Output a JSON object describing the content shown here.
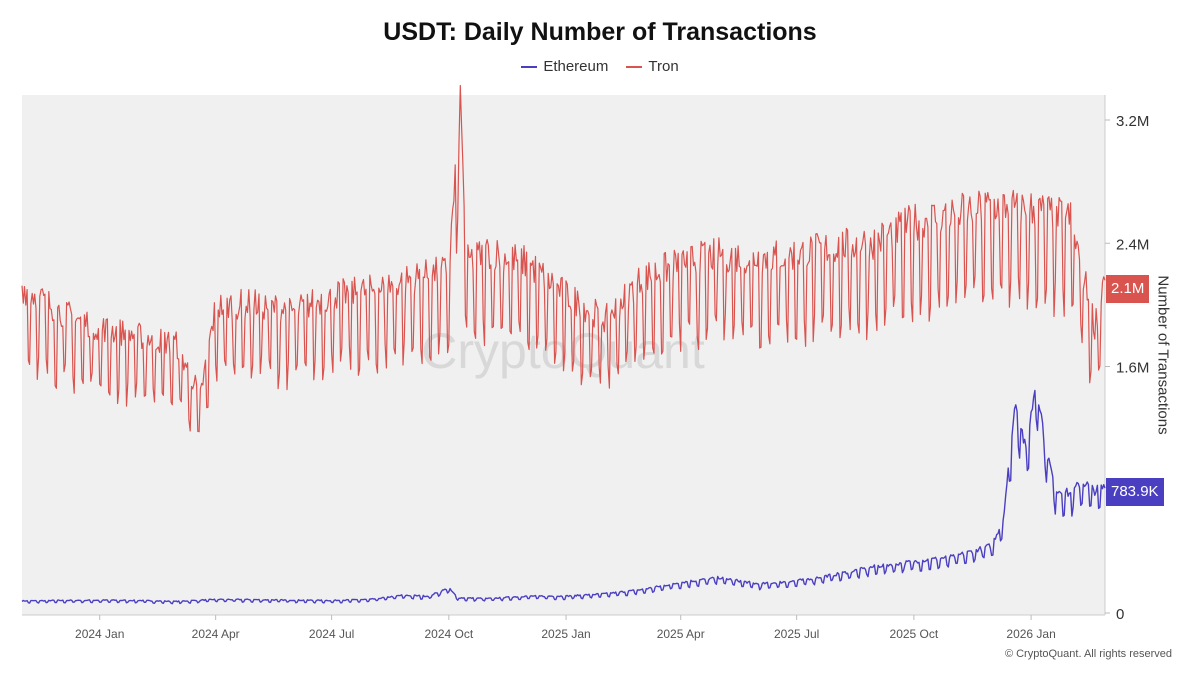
{
  "chart_data": {
    "type": "line",
    "title": "USDT: Daily Number of Transactions",
    "xlabel": "",
    "ylabel": "Number of Transactions",
    "x_range": [
      "2023-11-01",
      "2026-02-28"
    ],
    "x_ticks": [
      {
        "label": "2024 Jan",
        "date": "2024-01-01"
      },
      {
        "label": "2024 Apr",
        "date": "2024-04-01"
      },
      {
        "label": "2024 Jul",
        "date": "2024-07-01"
      },
      {
        "label": "2024 Oct",
        "date": "2024-10-01"
      },
      {
        "label": "2025 Jan",
        "date": "2025-01-01"
      },
      {
        "label": "2025 Apr",
        "date": "2025-04-01"
      },
      {
        "label": "2025 Jul",
        "date": "2025-07-01"
      },
      {
        "label": "2025 Oct",
        "date": "2025-10-01"
      },
      {
        "label": "2026 Jan",
        "date": "2026-01-01"
      }
    ],
    "ylim": [
      0,
      3200000
    ],
    "y_ticks": [
      {
        "label": "0",
        "value": 0
      },
      {
        "label": "1.6M",
        "value": 1600000
      },
      {
        "label": "2.4M",
        "value": 2400000
      },
      {
        "label": "3.2M",
        "value": 3200000
      }
    ],
    "series": [
      {
        "name": "Ethereum",
        "color": "#4b3fc1",
        "last_value_label": "783.9K",
        "points": [
          [
            "2023-11-01",
            75000
          ],
          [
            "2023-12-01",
            78000
          ],
          [
            "2024-01-01",
            80000
          ],
          [
            "2024-02-01",
            78000
          ],
          [
            "2024-03-01",
            72000
          ],
          [
            "2024-04-01",
            85000
          ],
          [
            "2024-05-01",
            83000
          ],
          [
            "2024-06-01",
            80000
          ],
          [
            "2024-07-01",
            78000
          ],
          [
            "2024-08-01",
            85000
          ],
          [
            "2024-08-25",
            110000
          ],
          [
            "2024-09-15",
            105000
          ],
          [
            "2024-10-01",
            155000
          ],
          [
            "2024-10-08",
            95000
          ],
          [
            "2024-11-01",
            90000
          ],
          [
            "2024-12-01",
            105000
          ],
          [
            "2025-01-01",
            105000
          ],
          [
            "2025-02-01",
            120000
          ],
          [
            "2025-03-01",
            145000
          ],
          [
            "2025-04-01",
            190000
          ],
          [
            "2025-05-01",
            220000
          ],
          [
            "2025-06-01",
            180000
          ],
          [
            "2025-07-01",
            200000
          ],
          [
            "2025-08-01",
            240000
          ],
          [
            "2025-09-01",
            290000
          ],
          [
            "2025-10-01",
            320000
          ],
          [
            "2025-11-01",
            350000
          ],
          [
            "2025-12-01",
            420000
          ],
          [
            "2025-12-10",
            580000
          ],
          [
            "2025-12-20",
            1330000
          ],
          [
            "2025-12-28",
            1000000
          ],
          [
            "2026-01-05",
            1460000
          ],
          [
            "2026-01-12",
            1050000
          ],
          [
            "2026-01-20",
            770000
          ],
          [
            "2026-02-01",
            740000
          ],
          [
            "2026-02-10",
            820000
          ],
          [
            "2026-02-20",
            760000
          ],
          [
            "2026-02-28",
            783900
          ]
        ]
      },
      {
        "name": "Tron",
        "color": "#d9534f",
        "last_value_label": "2.1M",
        "points": [
          [
            "2023-11-01",
            2000000
          ],
          [
            "2023-12-01",
            1850000
          ],
          [
            "2024-01-01",
            1750000
          ],
          [
            "2024-02-01",
            1700000
          ],
          [
            "2024-03-01",
            1650000
          ],
          [
            "2024-03-20",
            1330000
          ],
          [
            "2024-04-01",
            1880000
          ],
          [
            "2024-05-01",
            1900000
          ],
          [
            "2024-06-01",
            1850000
          ],
          [
            "2024-07-01",
            1950000
          ],
          [
            "2024-08-01",
            1980000
          ],
          [
            "2024-09-01",
            2050000
          ],
          [
            "2024-10-01",
            2100000
          ],
          [
            "2024-10-10",
            3130000
          ],
          [
            "2024-10-15",
            2150000
          ],
          [
            "2024-11-01",
            2220000
          ],
          [
            "2024-12-01",
            2150000
          ],
          [
            "2025-01-01",
            1950000
          ],
          [
            "2025-02-01",
            1800000
          ],
          [
            "2025-03-01",
            2050000
          ],
          [
            "2025-04-01",
            2150000
          ],
          [
            "2025-05-01",
            2200000
          ],
          [
            "2025-06-01",
            2180000
          ],
          [
            "2025-07-01",
            2200000
          ],
          [
            "2025-08-01",
            2250000
          ],
          [
            "2025-09-01",
            2280000
          ],
          [
            "2025-10-01",
            2400000
          ],
          [
            "2025-11-01",
            2450000
          ],
          [
            "2025-12-01",
            2500000
          ],
          [
            "2026-01-01",
            2480000
          ],
          [
            "2026-02-01",
            2420000
          ],
          [
            "2026-02-20",
            1760000
          ],
          [
            "2026-02-28",
            2100000
          ]
        ]
      }
    ],
    "watermark": "CryptoQuant",
    "legend_position": "top-center",
    "grid": false
  },
  "credit": "© CryptoQuant. All rights reserved"
}
